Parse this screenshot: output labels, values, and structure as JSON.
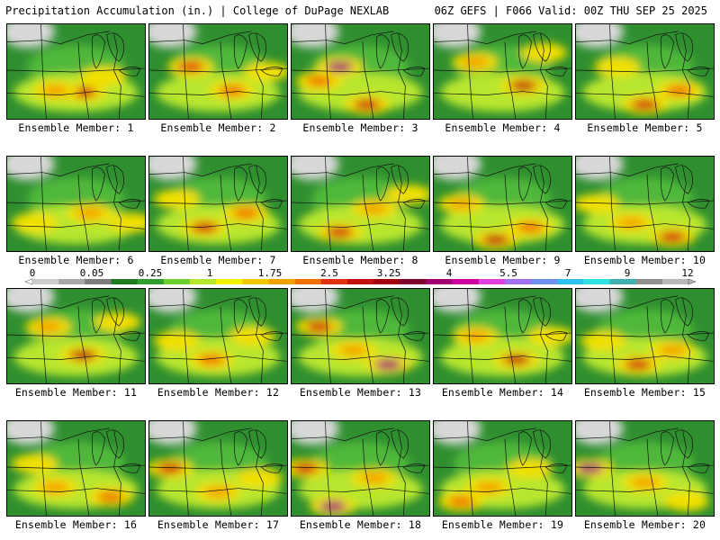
{
  "header": {
    "title": "Precipitation Accumulation (in.) | College of DuPage NEXLAB",
    "run_info": "06Z GEFS | F066 Valid: 00Z THU SEP 25 2025"
  },
  "panels": [
    {
      "label": "Ensemble Member: 1",
      "blobs": [
        [
          0.55,
          0.72,
          "#d01010"
        ],
        [
          0.35,
          0.7,
          "#f2a000"
        ],
        [
          0.7,
          0.55,
          "#f2e000"
        ]
      ]
    },
    {
      "label": "Ensemble Member: 2",
      "blobs": [
        [
          0.3,
          0.45,
          "#e03010"
        ],
        [
          0.6,
          0.7,
          "#f07000"
        ],
        [
          0.85,
          0.5,
          "#f2e000"
        ]
      ]
    },
    {
      "label": "Ensemble Member: 3",
      "blobs": [
        [
          0.35,
          0.45,
          "#a00070"
        ],
        [
          0.55,
          0.85,
          "#d01010"
        ],
        [
          0.2,
          0.6,
          "#f07000"
        ]
      ]
    },
    {
      "label": "Ensemble Member: 4",
      "blobs": [
        [
          0.65,
          0.65,
          "#c01010"
        ],
        [
          0.3,
          0.4,
          "#f2a000"
        ],
        [
          0.8,
          0.3,
          "#f2e000"
        ]
      ]
    },
    {
      "label": "Ensemble Member: 5",
      "blobs": [
        [
          0.5,
          0.85,
          "#d01010"
        ],
        [
          0.75,
          0.7,
          "#f07000"
        ],
        [
          0.3,
          0.45,
          "#f2e000"
        ]
      ]
    },
    {
      "label": "Ensemble Member: 6",
      "blobs": [
        [
          0.2,
          0.7,
          "#f2e000"
        ],
        [
          0.6,
          0.6,
          "#f2a000"
        ],
        [
          0.9,
          0.7,
          "#f2e000"
        ]
      ]
    },
    {
      "label": "Ensemble Member: 7",
      "blobs": [
        [
          0.4,
          0.75,
          "#d01010"
        ],
        [
          0.7,
          0.6,
          "#f07000"
        ],
        [
          0.2,
          0.45,
          "#f2e000"
        ]
      ]
    },
    {
      "label": "Ensemble Member: 8",
      "blobs": [
        [
          0.35,
          0.8,
          "#d01010"
        ],
        [
          0.6,
          0.55,
          "#f2a000"
        ],
        [
          0.85,
          0.4,
          "#f2e000"
        ]
      ]
    },
    {
      "label": "Ensemble Member: 9",
      "blobs": [
        [
          0.45,
          0.88,
          "#c01010"
        ],
        [
          0.2,
          0.5,
          "#f2a000"
        ],
        [
          0.7,
          0.75,
          "#f07000"
        ]
      ]
    },
    {
      "label": "Ensemble Member: 10",
      "blobs": [
        [
          0.4,
          0.7,
          "#f2a000"
        ],
        [
          0.7,
          0.85,
          "#d01010"
        ],
        [
          0.15,
          0.5,
          "#f2e000"
        ]
      ]
    },
    {
      "label": "Ensemble Member: 11",
      "blobs": [
        [
          0.55,
          0.7,
          "#c01010"
        ],
        [
          0.3,
          0.4,
          "#f2a000"
        ],
        [
          0.8,
          0.35,
          "#f2e000"
        ]
      ]
    },
    {
      "label": "Ensemble Member: 12",
      "blobs": [
        [
          0.45,
          0.75,
          "#f07000"
        ],
        [
          0.2,
          0.55,
          "#f2e000"
        ],
        [
          0.75,
          0.5,
          "#f2e000"
        ]
      ]
    },
    {
      "label": "Ensemble Member: 13",
      "blobs": [
        [
          0.7,
          0.8,
          "#a00070"
        ],
        [
          0.2,
          0.4,
          "#d01010"
        ],
        [
          0.45,
          0.65,
          "#f2a000"
        ]
      ]
    },
    {
      "label": "Ensemble Member: 14",
      "blobs": [
        [
          0.6,
          0.75,
          "#c01010"
        ],
        [
          0.3,
          0.5,
          "#f2a000"
        ],
        [
          0.85,
          0.5,
          "#f2e000"
        ]
      ]
    },
    {
      "label": "Ensemble Member: 15",
      "blobs": [
        [
          0.45,
          0.8,
          "#d01010"
        ],
        [
          0.7,
          0.65,
          "#f2a000"
        ],
        [
          0.2,
          0.55,
          "#f2e000"
        ]
      ]
    },
    {
      "label": "Ensemble Member: 16",
      "blobs": [
        [
          0.35,
          0.7,
          "#f2a000"
        ],
        [
          0.75,
          0.8,
          "#f07000"
        ],
        [
          0.2,
          0.45,
          "#f2e000"
        ]
      ]
    },
    {
      "label": "Ensemble Member: 17",
      "blobs": [
        [
          0.15,
          0.5,
          "#d01010"
        ],
        [
          0.5,
          0.75,
          "#f2a000"
        ],
        [
          0.8,
          0.6,
          "#f2e000"
        ]
      ]
    },
    {
      "label": "Ensemble Member: 18",
      "blobs": [
        [
          0.3,
          0.9,
          "#a00070"
        ],
        [
          0.1,
          0.5,
          "#d01010"
        ],
        [
          0.6,
          0.6,
          "#f2a000"
        ]
      ]
    },
    {
      "label": "Ensemble Member: 19",
      "blobs": [
        [
          0.4,
          0.7,
          "#f2a000"
        ],
        [
          0.7,
          0.5,
          "#f2e000"
        ],
        [
          0.2,
          0.85,
          "#f07000"
        ]
      ]
    },
    {
      "label": "Ensemble Member: 20",
      "blobs": [
        [
          0.1,
          0.5,
          "#a00070"
        ],
        [
          0.5,
          0.65,
          "#f2a000"
        ],
        [
          0.8,
          0.85,
          "#f2e000"
        ]
      ]
    }
  ],
  "colorbar": {
    "ticks": [
      "0",
      "0.05",
      "0.25",
      "1",
      "1.75",
      "2.5",
      "3.25",
      "4",
      "5.5",
      "7",
      "9",
      "12"
    ],
    "colors": [
      "#cccccc",
      "#a8a8a8",
      "#7d7d7d",
      "#1e7a1e",
      "#2f9f2f",
      "#6fcf2f",
      "#b8e62f",
      "#f2f200",
      "#f2c800",
      "#f2a000",
      "#f27000",
      "#e03010",
      "#c01010",
      "#a00010",
      "#800030",
      "#a00070",
      "#d000a0",
      "#e040e0",
      "#a070f0",
      "#7090f0",
      "#30c0f0",
      "#30e0e0",
      "#40b0b0",
      "#909090",
      "#b8b8b8"
    ]
  }
}
